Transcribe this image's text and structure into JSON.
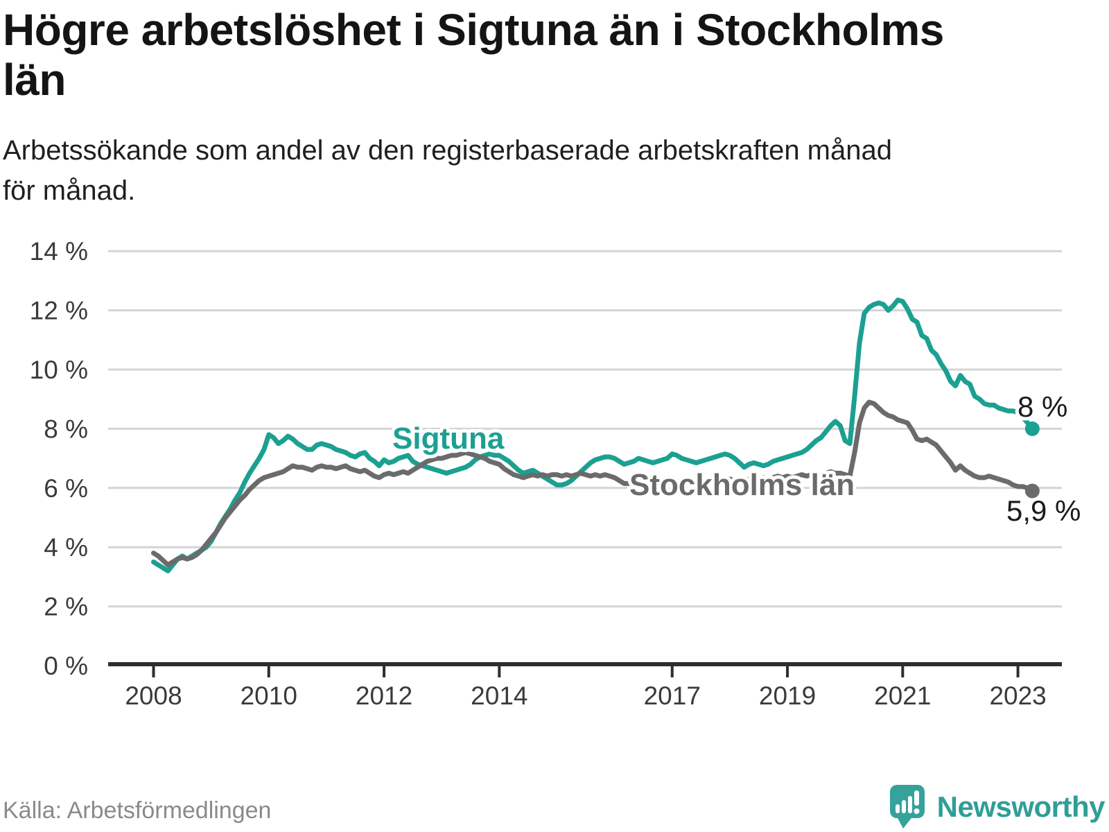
{
  "header": {
    "title": "Högre arbetslöshet i Sigtuna än i Stockholms län",
    "subtitle": "Arbetssökande som andel av den registerbaserade arbetskraften månad för månad."
  },
  "footer": {
    "source": "Källa: Arbetsförmedlingen",
    "brand": "Newsworthy"
  },
  "colors": {
    "sigtuna_teal": "#1ba092",
    "stockholm_gray": "#6b6b6b",
    "logo_teal": "#35a29b",
    "gridline": "#d4d4d4",
    "axis": "#2e2e2e"
  },
  "chart_data": {
    "type": "line",
    "title": "Högre arbetslöshet i Sigtuna än i Stockholms län",
    "subtitle": "Arbetssökande som andel av den registerbaserade arbetskraften månad för månad.",
    "xlabel": "",
    "ylabel": "",
    "grid": "horizontal-only",
    "legend": "inline-labels",
    "ylim": [
      0,
      14.8
    ],
    "xlim_years": [
      2007.15,
      2023.77
    ],
    "start_year": 2008,
    "frequency": "monthly",
    "y_ticks": [
      0,
      2,
      4,
      6,
      8,
      10,
      12,
      14
    ],
    "y_tick_labels": [
      "0 %",
      "2 %",
      "4 %",
      "6 %",
      "8 %",
      "10 %",
      "12 %",
      "14 %"
    ],
    "x_tick_years": [
      2008,
      2010,
      2012,
      2014,
      2017,
      2019,
      2021,
      2023
    ],
    "x_tick_labels": [
      "2008",
      "2010",
      "2012",
      "2014",
      "2017",
      "2019",
      "2021",
      "2023"
    ],
    "series": [
      {
        "name": "Sigtuna",
        "color": "#1ba092",
        "end_label": "8 %",
        "final_value": 8.0,
        "values": [
          3.5,
          3.4,
          3.3,
          3.2,
          3.4,
          3.6,
          3.7,
          3.6,
          3.7,
          3.8,
          3.9,
          4.0,
          4.2,
          4.5,
          4.8,
          5.05,
          5.3,
          5.6,
          5.85,
          6.2,
          6.5,
          6.75,
          7.0,
          7.3,
          7.8,
          7.7,
          7.5,
          7.6,
          7.75,
          7.65,
          7.5,
          7.4,
          7.3,
          7.3,
          7.45,
          7.5,
          7.45,
          7.4,
          7.3,
          7.25,
          7.2,
          7.1,
          7.05,
          7.15,
          7.2,
          7.0,
          6.9,
          6.75,
          6.95,
          6.85,
          6.9,
          7.0,
          7.05,
          7.1,
          6.9,
          6.8,
          6.75,
          6.7,
          6.65,
          6.6,
          6.55,
          6.5,
          6.55,
          6.6,
          6.65,
          6.7,
          6.8,
          6.95,
          7.05,
          7.1,
          7.15,
          7.1,
          7.1,
          7.0,
          6.9,
          6.75,
          6.6,
          6.5,
          6.55,
          6.6,
          6.5,
          6.4,
          6.3,
          6.2,
          6.1,
          6.1,
          6.15,
          6.25,
          6.4,
          6.55,
          6.7,
          6.85,
          6.95,
          7.0,
          7.05,
          7.05,
          7.0,
          6.9,
          6.8,
          6.85,
          6.9,
          7.0,
          6.95,
          6.9,
          6.85,
          6.9,
          6.95,
          7.0,
          7.15,
          7.1,
          7.0,
          6.95,
          6.9,
          6.85,
          6.9,
          6.95,
          7.0,
          7.05,
          7.1,
          7.15,
          7.1,
          7.0,
          6.85,
          6.7,
          6.8,
          6.85,
          6.8,
          6.75,
          6.8,
          6.9,
          6.95,
          7.0,
          7.05,
          7.1,
          7.15,
          7.2,
          7.3,
          7.45,
          7.6,
          7.7,
          7.9,
          8.1,
          8.25,
          8.1,
          7.6,
          7.5,
          9.1,
          10.9,
          11.9,
          12.1,
          12.2,
          12.25,
          12.2,
          12.0,
          12.15,
          12.35,
          12.3,
          12.05,
          11.7,
          11.6,
          11.15,
          11.05,
          10.65,
          10.5,
          10.2,
          9.95,
          9.6,
          9.45,
          9.8,
          9.6,
          9.5,
          9.1,
          9.0,
          8.85,
          8.8,
          8.8,
          8.7,
          8.65,
          8.6,
          8.6,
          8.55,
          8.4,
          8.2,
          8.0
        ]
      },
      {
        "name": "Stockholms län",
        "color": "#6b6b6b",
        "end_label": "5,9 %",
        "final_value": 5.9,
        "values": [
          3.8,
          3.7,
          3.55,
          3.4,
          3.5,
          3.6,
          3.65,
          3.6,
          3.65,
          3.75,
          3.9,
          4.1,
          4.3,
          4.5,
          4.75,
          5.0,
          5.2,
          5.4,
          5.6,
          5.75,
          5.95,
          6.1,
          6.25,
          6.35,
          6.4,
          6.45,
          6.5,
          6.55,
          6.65,
          6.75,
          6.7,
          6.7,
          6.65,
          6.6,
          6.7,
          6.75,
          6.7,
          6.7,
          6.65,
          6.7,
          6.75,
          6.65,
          6.6,
          6.55,
          6.6,
          6.5,
          6.4,
          6.35,
          6.45,
          6.5,
          6.45,
          6.5,
          6.55,
          6.5,
          6.6,
          6.7,
          6.8,
          6.9,
          6.95,
          7.0,
          7.0,
          7.05,
          7.1,
          7.1,
          7.15,
          7.2,
          7.15,
          7.1,
          7.05,
          7.0,
          6.9,
          6.85,
          6.8,
          6.65,
          6.55,
          6.45,
          6.4,
          6.35,
          6.4,
          6.45,
          6.4,
          6.45,
          6.4,
          6.45,
          6.45,
          6.4,
          6.45,
          6.4,
          6.45,
          6.5,
          6.45,
          6.4,
          6.45,
          6.4,
          6.45,
          6.4,
          6.35,
          6.25,
          6.15,
          6.15,
          6.2,
          6.25,
          6.2,
          6.15,
          6.2,
          6.25,
          6.2,
          6.25,
          6.25,
          6.2,
          6.25,
          6.3,
          6.25,
          6.3,
          6.35,
          6.3,
          6.25,
          6.3,
          6.35,
          6.3,
          6.3,
          6.25,
          6.3,
          6.25,
          6.3,
          6.35,
          6.3,
          6.35,
          6.3,
          6.35,
          6.4,
          6.35,
          6.4,
          6.35,
          6.4,
          6.45,
          6.4,
          6.45,
          6.5,
          6.45,
          6.5,
          6.55,
          6.5,
          6.5,
          6.45,
          6.4,
          7.2,
          8.2,
          8.7,
          8.9,
          8.85,
          8.7,
          8.55,
          8.45,
          8.4,
          8.3,
          8.25,
          8.2,
          7.95,
          7.65,
          7.6,
          7.65,
          7.55,
          7.45,
          7.25,
          7.05,
          6.85,
          6.6,
          6.75,
          6.6,
          6.5,
          6.4,
          6.35,
          6.35,
          6.4,
          6.35,
          6.3,
          6.25,
          6.2,
          6.1,
          6.05,
          6.05,
          6.0,
          5.9
        ]
      }
    ]
  }
}
